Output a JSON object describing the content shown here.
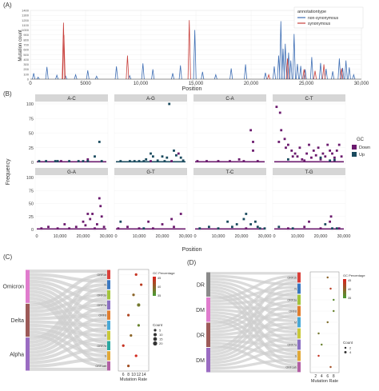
{
  "panel_labels": [
    "(A)",
    "(B)",
    "(C)",
    "(D)"
  ],
  "panelA": {
    "ylabel": "Mutation count",
    "xlabel": "Position",
    "yticks": [
      "0",
      "100",
      "200",
      "300",
      "400",
      "500",
      "600",
      "700",
      "800",
      "900",
      "1000",
      "1100",
      "1200",
      "1300",
      "1400"
    ],
    "xticks": [
      "0",
      "5000",
      "10,000",
      "15,000",
      "20,000",
      "25,000",
      "30,000"
    ],
    "legend_title": "annotationtype",
    "legend_items": [
      {
        "label": "non-synonymous",
        "color": "#3f6fb5"
      },
      {
        "label": "synonymous",
        "color": "#c8403c"
      }
    ]
  },
  "panelB": {
    "facets_top": [
      "A-C",
      "A-G",
      "C-A",
      "C-T"
    ],
    "facets_bottom": [
      "G-A",
      "G-T",
      "T-C",
      "T-G"
    ],
    "ylabel": "Frequency",
    "xlabel": "Position",
    "yticks": [
      "0",
      "25",
      "50",
      "75",
      "100"
    ],
    "xticks": [
      "0",
      "10,000",
      "20,000",
      "30,000"
    ],
    "legend_title": "GC",
    "legend_items": [
      {
        "label": "Down",
        "color": "#6b1a6e"
      },
      {
        "label": "Up",
        "color": "#1a4a5e"
      }
    ]
  },
  "panelC": {
    "left_nodes": [
      {
        "label": "Omicron",
        "color": "#e07ccd"
      },
      {
        "label": "Delta",
        "color": "#9d5a58"
      },
      {
        "label": "Alpha",
        "color": "#9a6cc2"
      }
    ],
    "right_nodes": [
      "ORF1b",
      "N",
      "ORF3a",
      "ORF7a",
      "ORF8",
      "M",
      "E",
      "ORF7b",
      "S",
      "ORF1ab"
    ],
    "right_colors": [
      "#d9403a",
      "#3b78c0",
      "#a2c43c",
      "#8a6fc1",
      "#e07d2e",
      "#48a8d6",
      "#c8c83a",
      "#2aa7a0",
      "#e0a838",
      "#b25fa4"
    ],
    "xlabel": "Mutation Rate",
    "xticks": [
      "6",
      "8",
      "10",
      "12",
      "14"
    ],
    "gc_title": "GC Percentage",
    "gc_ticks": [
      "35",
      "40",
      "45"
    ],
    "count_title": "Count",
    "count_items": [
      "5",
      "10",
      "15",
      "20"
    ]
  },
  "panelD": {
    "left_nodes": [
      {
        "label": "DR",
        "color": "#8a8a8a"
      },
      {
        "label": "DM",
        "color": "#e07ccd"
      },
      {
        "label": "DR",
        "color": "#9d5a58"
      },
      {
        "label": "DM",
        "color": "#9a6cc2"
      }
    ],
    "right_nodes": [
      "ORF1b",
      "N",
      "ORF3a",
      "ORF8",
      "M",
      "E",
      "ORF7a",
      "S",
      "ORF1ab"
    ],
    "right_colors": [
      "#d9403a",
      "#3b78c0",
      "#a2c43c",
      "#e07d2e",
      "#48a8d6",
      "#c8c83a",
      "#8a6fc1",
      "#e0a838",
      "#b25fa4"
    ],
    "xlabel": "Mutation Rate",
    "xticks": [
      "2",
      "4",
      "6",
      "8"
    ],
    "gc_title": "GC Percentage",
    "gc_ticks": [
      "35",
      "40",
      "45"
    ],
    "count_title": "Count",
    "count_items": [
      "2",
      "4"
    ]
  },
  "chart_data": [
    {
      "type": "line",
      "panel": "A",
      "xlabel": "Position",
      "ylabel": "Mutation count",
      "xlim": [
        0,
        30000
      ],
      "ylim": [
        0,
        1400
      ],
      "series": [
        {
          "name": "non-synonymous",
          "color": "#3f6fb5",
          "x": [
            300,
            700,
            1500,
            2400,
            3200,
            4100,
            5200,
            6000,
            7800,
            9000,
            10200,
            11100,
            12900,
            13600,
            14900,
            15600,
            16800,
            18200,
            19500,
            21300,
            22100,
            22500,
            22700,
            22900,
            23100,
            23400,
            23600,
            23900,
            24200,
            24500,
            24900,
            25500,
            26300,
            26800,
            27400,
            28000,
            28300,
            28600,
            28900,
            29300
          ],
          "y": [
            120,
            40,
            250,
            80,
            60,
            90,
            180,
            60,
            260,
            70,
            320,
            200,
            120,
            280,
            1000,
            150,
            90,
            220,
            300,
            130,
            260,
            480,
            1180,
            620,
            720,
            540,
            380,
            920,
            310,
            270,
            200,
            450,
            330,
            210,
            160,
            420,
            230,
            380,
            240,
            90
          ]
        },
        {
          "name": "synonymous",
          "color": "#c8403c",
          "x": [
            3000,
            3040,
            8800,
            14400,
            21600,
            23300,
            24800,
            25800,
            26600,
            28200
          ],
          "y": [
            1150,
            900,
            480,
            1200,
            90,
            420,
            200,
            170,
            300,
            220
          ]
        }
      ]
    },
    {
      "type": "scatter",
      "panel": "B",
      "xlim": [
        0,
        30000
      ],
      "ylim": [
        0,
        100
      ],
      "facets": [
        {
          "name": "A-C",
          "down": [
            [
              10500,
              2
            ],
            [
              22000,
              5
            ]
          ],
          "up": [
            [
              1000,
              2
            ],
            [
              4000,
              2
            ],
            [
              9000,
              2
            ],
            [
              14000,
              2
            ],
            [
              18000,
              2
            ],
            [
              20000,
              2
            ],
            [
              22000,
              2
            ],
            [
              25000,
              10
            ],
            [
              27000,
              35
            ],
            [
              28000,
              2
            ],
            [
              8000,
              2
            ]
          ]
        },
        {
          "name": "A-G",
          "down": [
            [
              15000,
              2
            ],
            [
              24000,
              2
            ],
            [
              27000,
              15
            ]
          ],
          "up": [
            [
              2000,
              2
            ],
            [
              6000,
              2
            ],
            [
              10000,
              2
            ],
            [
              13000,
              5
            ],
            [
              15000,
              15
            ],
            [
              16000,
              10
            ],
            [
              18000,
              3
            ],
            [
              20000,
              10
            ],
            [
              22000,
              8
            ],
            [
              23000,
              100
            ],
            [
              25000,
              20
            ],
            [
              26000,
              12
            ],
            [
              28000,
              8
            ],
            [
              29000,
              3
            ],
            [
              21000,
              2
            ],
            [
              12000,
              2
            ],
            [
              8000,
              2
            ]
          ]
        },
        {
          "name": "C-A",
          "down": [
            [
              1000,
              2
            ],
            [
              5000,
              2
            ],
            [
              10000,
              2
            ],
            [
              15000,
              2
            ],
            [
              19000,
              5
            ],
            [
              21000,
              2
            ],
            [
              24000,
              55
            ],
            [
              25000,
              35
            ],
            [
              27000,
              2
            ],
            [
              25000,
              20
            ]
          ],
          "up": []
        },
        {
          "name": "C-T",
          "down": [
            [
              1000,
              95
            ],
            [
              2500,
              85
            ],
            [
              3000,
              55
            ],
            [
              4500,
              40
            ],
            [
              6000,
              30
            ],
            [
              7500,
              20
            ],
            [
              9000,
              15
            ],
            [
              10000,
              10
            ],
            [
              11000,
              25
            ],
            [
              12000,
              5
            ],
            [
              14000,
              15
            ],
            [
              15000,
              30
            ],
            [
              16000,
              8
            ],
            [
              17000,
              20
            ],
            [
              18000,
              12
            ],
            [
              19000,
              25
            ],
            [
              20000,
              5
            ],
            [
              21000,
              15
            ],
            [
              22000,
              10
            ],
            [
              23000,
              30
            ],
            [
              24000,
              20
            ],
            [
              25000,
              15
            ],
            [
              26000,
              8
            ],
            [
              27000,
              20
            ],
            [
              28000,
              30
            ],
            [
              29000,
              10
            ],
            [
              2000,
              35
            ],
            [
              5000,
              25
            ],
            [
              8000,
              10
            ],
            [
              13000,
              3
            ]
          ],
          "up": [
            [
              6000,
              5
            ],
            [
              20000,
              8
            ],
            [
              26000,
              4
            ],
            [
              24000,
              3
            ]
          ]
        },
        {
          "name": "G-A",
          "down": [
            [
              2000,
              2
            ],
            [
              5000,
              5
            ],
            [
              9000,
              2
            ],
            [
              12000,
              10
            ],
            [
              14000,
              2
            ],
            [
              17000,
              5
            ],
            [
              20000,
              15
            ],
            [
              21000,
              8
            ],
            [
              22000,
              30
            ],
            [
              23000,
              20
            ],
            [
              24000,
              30
            ],
            [
              26000,
              10
            ],
            [
              27000,
              60
            ],
            [
              27500,
              45
            ],
            [
              28000,
              25
            ],
            [
              29000,
              5
            ],
            [
              25000,
              2
            ]
          ],
          "up": []
        },
        {
          "name": "G-T",
          "down": [
            [
              1000,
              2
            ],
            [
              5000,
              5
            ],
            [
              14000,
              15
            ],
            [
              16000,
              2
            ],
            [
              20000,
              10
            ],
            [
              24000,
              20
            ],
            [
              25000,
              5
            ],
            [
              28000,
              30
            ],
            [
              10000,
              2
            ]
          ],
          "up": [
            [
              2000,
              15
            ],
            [
              12000,
              2
            ]
          ]
        },
        {
          "name": "T-C",
          "down": [
            [
              22000,
              2
            ]
          ],
          "up": [
            [
              2000,
              2
            ],
            [
              6000,
              5
            ],
            [
              10000,
              2
            ],
            [
              14000,
              15
            ],
            [
              16000,
              5
            ],
            [
              18000,
              10
            ],
            [
              21000,
              20
            ],
            [
              22000,
              30
            ],
            [
              24000,
              10
            ],
            [
              26000,
              15
            ],
            [
              27000,
              5
            ],
            [
              28000,
              2
            ],
            [
              30000,
              2
            ]
          ]
        },
        {
          "name": "T-G",
          "down": [
            [
              6000,
              2
            ],
            [
              13000,
              5
            ],
            [
              15000,
              15
            ],
            [
              20000,
              2
            ],
            [
              24000,
              15
            ],
            [
              24500,
              25
            ],
            [
              28000,
              2
            ]
          ],
          "up": [
            [
              2000,
              5
            ],
            [
              22000,
              10
            ],
            [
              25000,
              2
            ],
            [
              8000,
              2
            ],
            [
              27000,
              2
            ]
          ]
        }
      ]
    },
    {
      "type": "scatter",
      "panel": "C",
      "xlabel": "Mutation Rate",
      "xlim": [
        5,
        15
      ],
      "categories": [
        "ORF1b",
        "N",
        "ORF3a",
        "ORF7a",
        "ORF8",
        "M",
        "E",
        "ORF7b",
        "S",
        "ORF1ab"
      ],
      "points": [
        {
          "y": "ORF1b",
          "x": 11,
          "gc": 45,
          "count": 5
        },
        {
          "y": "N",
          "x": 13,
          "gc": 44,
          "count": 5
        },
        {
          "y": "ORF3a",
          "x": 10,
          "gc": 40,
          "count": 5
        },
        {
          "y": "ORF7a",
          "x": 12,
          "gc": 38,
          "count": 10
        },
        {
          "y": "ORF8",
          "x": 8,
          "gc": 43,
          "count": 5
        },
        {
          "y": "M",
          "x": 12,
          "gc": 37,
          "count": 5
        },
        {
          "y": "E",
          "x": 9,
          "gc": 40,
          "count": 5
        },
        {
          "y": "ORF7b",
          "x": 6,
          "gc": 45,
          "count": 5
        },
        {
          "y": "S",
          "x": 11,
          "gc": 46,
          "count": 5
        },
        {
          "y": "ORF1ab",
          "x": 8,
          "gc": 42,
          "count": 5
        }
      ]
    },
    {
      "type": "scatter",
      "panel": "D",
      "xlabel": "Mutation Rate",
      "xlim": [
        1,
        9
      ],
      "categories": [
        "ORF1b",
        "N",
        "ORF3a",
        "ORF8",
        "M",
        "E",
        "ORF7a",
        "S",
        "ORF1ab"
      ],
      "points": [
        {
          "y": "ORF1b",
          "x": 6,
          "gc": 40,
          "count": 2
        },
        {
          "y": "N",
          "x": 7,
          "gc": 44,
          "count": 2
        },
        {
          "y": "ORF3a",
          "x": 8,
          "gc": 36,
          "count": 2
        },
        {
          "y": "ORF8",
          "x": 8,
          "gc": 37,
          "count": 2
        },
        {
          "y": "M",
          "x": 6,
          "gc": 39,
          "count": 2
        },
        {
          "y": "E",
          "x": 3,
          "gc": 38,
          "count": 2
        },
        {
          "y": "ORF7a",
          "x": 4,
          "gc": 37,
          "count": 2
        },
        {
          "y": "S",
          "x": 3,
          "gc": 45,
          "count": 2
        },
        {
          "y": "ORF1ab",
          "x": 7,
          "gc": 42,
          "count": 2
        }
      ]
    }
  ]
}
